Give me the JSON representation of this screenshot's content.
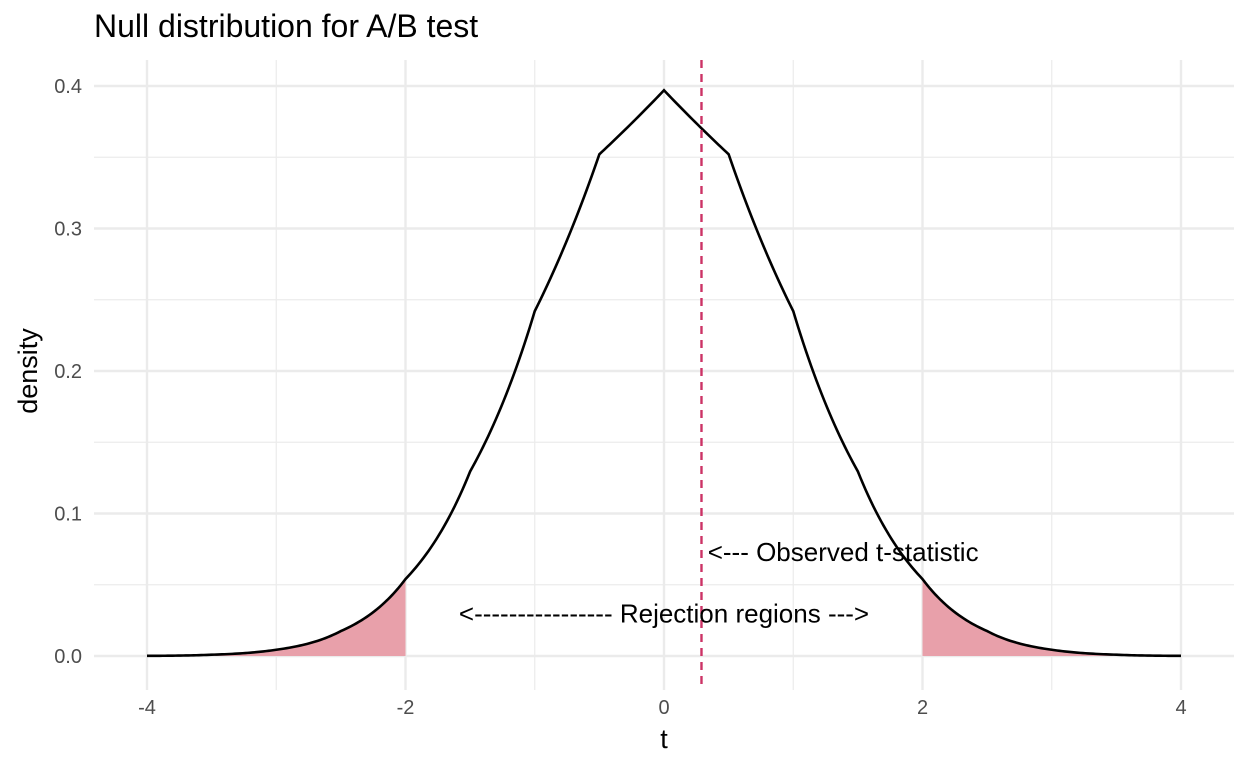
{
  "chart_data": {
    "type": "area",
    "title": "Null distribution for A/B test",
    "xlabel": "t",
    "ylabel": "density",
    "xlim": [
      -4,
      4
    ],
    "ylim": [
      0,
      0.4
    ],
    "x_ticks": [
      -4,
      -2,
      0,
      2,
      4
    ],
    "x_tick_labels": [
      "-4",
      "-2",
      "0",
      "2",
      "4"
    ],
    "y_ticks": [
      0.0,
      0.1,
      0.2,
      0.3,
      0.4
    ],
    "y_tick_labels": [
      "0.0",
      "0.1",
      "0.2",
      "0.3",
      "0.4"
    ],
    "grid": true,
    "legend": "none",
    "distribution": "t (approx. standard normal, peak density 0.397 at t = 0)",
    "density_curve": {
      "x": [
        -4,
        -3.5,
        -3,
        -2.5,
        -2,
        -1.5,
        -1,
        -0.5,
        0,
        0.5,
        1,
        1.5,
        2,
        2.5,
        3,
        3.5,
        4
      ],
      "y": [
        0.0001,
        0.0009,
        0.0044,
        0.0175,
        0.054,
        0.1295,
        0.242,
        0.3521,
        0.397,
        0.3521,
        0.242,
        0.1295,
        0.054,
        0.0175,
        0.0044,
        0.0009,
        0.0001
      ]
    },
    "rejection_regions": [
      {
        "from": -4,
        "to": -2
      },
      {
        "from": 2,
        "to": 4
      }
    ],
    "observed_t": 0.29,
    "annotations": [
      {
        "text": "<--- Observed t-statistic",
        "x": 0.4,
        "y": 0.073
      },
      {
        "text": "<----------------  Rejection regions  --->",
        "x": 0.0,
        "y": 0.03
      }
    ],
    "colors": {
      "curve": "#000000",
      "rejection_fill": "#e8a0aa",
      "observed_line": "#cc3366",
      "grid": "#ebebeb",
      "tick_text": "#4d4d4d"
    }
  }
}
